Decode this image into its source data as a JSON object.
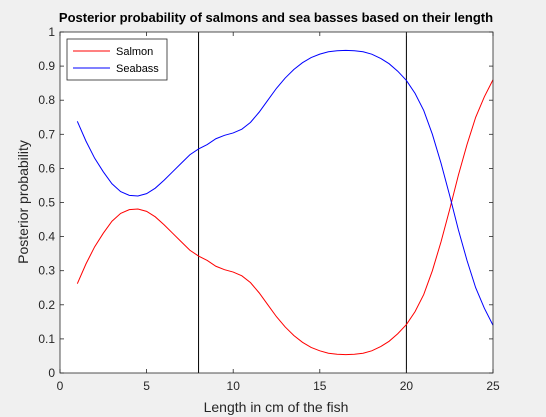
{
  "chart_data": {
    "type": "line",
    "title": "Posterior probability of salmons and sea basses based on their length",
    "xlabel": "Length in cm of the fish",
    "ylabel": "Posterior probability",
    "xlim": [
      0,
      25
    ],
    "ylim": [
      0,
      1
    ],
    "xticks": [
      0,
      5,
      10,
      15,
      20,
      25
    ],
    "yticks": [
      0,
      0.1,
      0.2,
      0.3,
      0.4,
      0.5,
      0.6,
      0.7,
      0.8,
      0.9,
      1
    ],
    "ytick_labels": [
      "0",
      "0.1",
      "0.2",
      "0.3",
      "0.4",
      "0.5",
      "0.6",
      "0.7",
      "0.8",
      "0.9",
      "1"
    ],
    "grid": false,
    "legend_position": "top-left",
    "vertical_lines": [
      8,
      20
    ],
    "series": [
      {
        "name": "Salmon",
        "color": "#ff0000",
        "x": [
          1,
          1.5,
          2,
          2.5,
          3,
          3.5,
          4,
          4.5,
          5,
          5.5,
          6,
          6.5,
          7,
          7.5,
          8,
          8.5,
          9,
          9.5,
          10,
          10.5,
          11,
          11.5,
          12,
          12.5,
          13,
          13.5,
          14,
          14.5,
          15,
          15.5,
          16,
          16.5,
          17,
          17.5,
          18,
          18.5,
          19,
          19.5,
          20,
          20.5,
          21,
          21.5,
          22,
          22.5,
          23,
          23.5,
          24,
          24.5,
          25
        ],
        "values": [
          0.262,
          0.32,
          0.37,
          0.41,
          0.445,
          0.468,
          0.479,
          0.481,
          0.474,
          0.458,
          0.435,
          0.41,
          0.385,
          0.36,
          0.343,
          0.33,
          0.313,
          0.303,
          0.296,
          0.285,
          0.265,
          0.235,
          0.2,
          0.165,
          0.135,
          0.11,
          0.09,
          0.075,
          0.065,
          0.058,
          0.055,
          0.054,
          0.055,
          0.058,
          0.065,
          0.077,
          0.093,
          0.115,
          0.142,
          0.18,
          0.23,
          0.3,
          0.385,
          0.48,
          0.58,
          0.67,
          0.75,
          0.81,
          0.86
        ]
      },
      {
        "name": "Seabass",
        "color": "#0000ff",
        "x": [
          1,
          1.5,
          2,
          2.5,
          3,
          3.5,
          4,
          4.5,
          5,
          5.5,
          6,
          6.5,
          7,
          7.5,
          8,
          8.5,
          9,
          9.5,
          10,
          10.5,
          11,
          11.5,
          12,
          12.5,
          13,
          13.5,
          14,
          14.5,
          15,
          15.5,
          16,
          16.5,
          17,
          17.5,
          18,
          18.5,
          19,
          19.5,
          20,
          20.5,
          21,
          21.5,
          22,
          22.5,
          23,
          23.5,
          24,
          24.5,
          25
        ],
        "values": [
          0.738,
          0.68,
          0.63,
          0.59,
          0.555,
          0.532,
          0.521,
          0.519,
          0.526,
          0.542,
          0.565,
          0.59,
          0.615,
          0.64,
          0.657,
          0.67,
          0.687,
          0.697,
          0.704,
          0.715,
          0.735,
          0.765,
          0.8,
          0.835,
          0.865,
          0.89,
          0.91,
          0.925,
          0.935,
          0.942,
          0.945,
          0.946,
          0.945,
          0.942,
          0.935,
          0.923,
          0.907,
          0.885,
          0.858,
          0.82,
          0.77,
          0.7,
          0.615,
          0.52,
          0.42,
          0.33,
          0.25,
          0.19,
          0.14
        ]
      }
    ]
  }
}
